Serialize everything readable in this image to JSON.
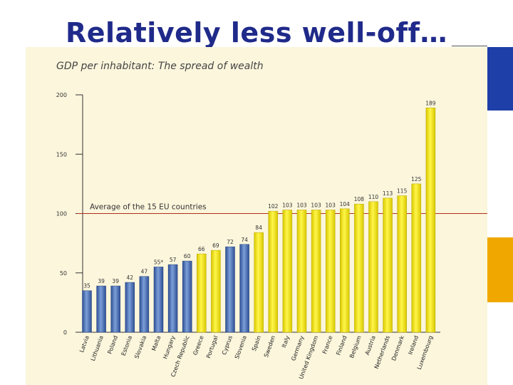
{
  "slide": {
    "title": "Relatively less well-off…"
  },
  "colors": {
    "title": "#1f2a8a",
    "panel_bg": "#fbf6dc",
    "blue_bar": "#4a6fb5",
    "yellow_bar": "#f3e600",
    "average_line": "#b0301c",
    "accent_blue": "#1f3fa8",
    "accent_orange": "#f0a800"
  },
  "chart_data": {
    "type": "bar",
    "title": "GDP per inhabitant: The spread of wealth",
    "xlabel": "",
    "ylabel": "",
    "ylim": [
      0,
      200
    ],
    "yticks": [
      0,
      50,
      100,
      150,
      200
    ],
    "categories": [
      "Latvia",
      "Lithuania",
      "Poland",
      "Estonia",
      "Slovakia",
      "Malta",
      "Hungary",
      "Czech Republic",
      "Greece",
      "Portugal",
      "Cyprus",
      "Slovenia",
      "Spain",
      "Sweden",
      "Italy",
      "Germany",
      "United Kingdom",
      "France",
      "Finland",
      "Belgium",
      "Austria",
      "Netherlands",
      "Denmark",
      "Ireland",
      "Luxembourg"
    ],
    "values": [
      35,
      39,
      39,
      42,
      47,
      55,
      57,
      60,
      66,
      69,
      72,
      74,
      84,
      102,
      103,
      103,
      103,
      103,
      104,
      108,
      110,
      113,
      115,
      125,
      189
    ],
    "value_labels": [
      "35",
      "39",
      "39",
      "42",
      "47",
      "55*",
      "57",
      "60",
      "66",
      "69",
      "72",
      "74",
      "84",
      "102",
      "103",
      "103",
      "103",
      "103",
      "104",
      "108",
      "110",
      "113",
      "115",
      "125",
      "189"
    ],
    "groups": [
      "new",
      "new",
      "new",
      "new",
      "new",
      "new",
      "new",
      "new",
      "eu15",
      "eu15",
      "new",
      "new",
      "eu15",
      "eu15",
      "eu15",
      "eu15",
      "eu15",
      "eu15",
      "eu15",
      "eu15",
      "eu15",
      "eu15",
      "eu15",
      "eu15",
      "eu15"
    ],
    "average": {
      "value": 100,
      "label": "Average of the 15 EU countries"
    },
    "grid": false
  }
}
